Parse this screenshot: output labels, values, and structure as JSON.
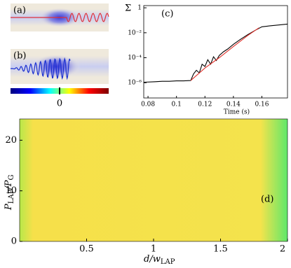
{
  "chart_data": [
    {
      "type": "beam-image",
      "panel_label": "(a)",
      "wave_color": "#e0303a"
    },
    {
      "type": "beam-image",
      "panel_label": "(b)",
      "wave_color": "#1a2fd0"
    },
    {
      "type": "colorbar",
      "ticks": [
        {
          "value": 0.5,
          "label": "0"
        }
      ],
      "colors": [
        "#00007f",
        "#0000ff",
        "#00ffff",
        "#ffff00",
        "#ff0000",
        "#7f0000"
      ]
    },
    {
      "type": "line",
      "panel_label": "(c)",
      "ylabel": "Σ",
      "xlabel": "Time (s)",
      "log_y": true,
      "xlim": [
        0.077,
        0.178
      ],
      "ylim": [
        6e-08,
        1.5
      ],
      "xticks": [
        0.08,
        0.1,
        0.12,
        0.14,
        0.16
      ],
      "yticks": [
        {
          "value": 1e-06,
          "label": "10⁻⁶"
        },
        {
          "value": 0.0001,
          "label": "10⁻⁴"
        },
        {
          "value": 0.01,
          "label": "10⁻²"
        },
        1
      ],
      "series": [
        {
          "color": "#000000",
          "x": [
            0.077,
            0.085,
            0.09,
            0.095,
            0.1,
            0.105,
            0.11,
            0.112,
            0.114,
            0.116,
            0.118,
            0.12,
            0.122,
            0.124,
            0.126,
            0.128,
            0.13,
            0.133,
            0.136,
            0.14,
            0.145,
            0.15,
            0.155,
            0.16,
            0.165,
            0.17,
            0.178
          ],
          "values": [
            1.1e-06,
            1.2e-06,
            1.3e-06,
            1.3e-06,
            1.4e-06,
            1.4e-06,
            1.5e-06,
            5e-06,
            1e-05,
            6e-06,
            3e-05,
            2e-05,
            7e-05,
            3e-05,
            0.00012,
            6e-05,
            0.00015,
            0.0003,
            0.0005,
            0.0012,
            0.003,
            0.007,
            0.015,
            0.03,
            0.035,
            0.04,
            0.05
          ]
        },
        {
          "color": "#e0302a",
          "x": [
            0.11,
            0.12,
            0.13,
            0.14,
            0.15,
            0.158
          ],
          "values": [
            1.5e-06,
            1.5e-05,
            0.0001,
            0.0008,
            0.006,
            0.025
          ]
        }
      ]
    },
    {
      "type": "heatmap",
      "panel_label": "(d)",
      "xlabel": [
        "d/w",
        "LAP"
      ],
      "ylabel": [
        "P",
        "LAP",
        "/P",
        "G"
      ],
      "xlim": [
        0,
        2
      ],
      "ylim": [
        0,
        24.2
      ],
      "xticks": [
        0.5,
        1,
        1.5,
        2
      ],
      "yticks": [
        0,
        10,
        20
      ]
    }
  ]
}
